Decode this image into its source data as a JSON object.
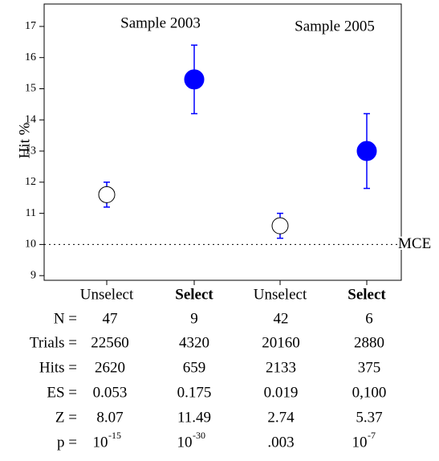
{
  "chart_data": {
    "type": "errorbar",
    "ylabel": "Hit %",
    "categories": [
      "Unselect",
      "Select",
      "Unselect",
      "Select"
    ],
    "category_colors": [
      "#000000",
      "#0000ff",
      "#000000",
      "#0000ff"
    ],
    "values": [
      11.6,
      15.3,
      10.6,
      13.0
    ],
    "errors": [
      0.4,
      1.1,
      0.4,
      1.2
    ],
    "point_colors": [
      "#ffffff",
      "#0000ff",
      "#ffffff",
      "#0000ff"
    ],
    "error_color": "#0000ff",
    "ylim": [
      8.85,
      17.72
    ],
    "yticks": [
      9,
      10,
      11,
      12,
      13,
      14,
      15,
      16,
      17
    ],
    "reference_line": {
      "value": 10,
      "label": "MCE"
    },
    "annotations": [
      "Sample 2003",
      "Sample 2005"
    ]
  },
  "table": {
    "rows": [
      {
        "label": "N =",
        "cells": [
          "47",
          "9",
          "42",
          "6"
        ]
      },
      {
        "label": "Trials =",
        "cells": [
          "22560",
          "4320",
          "20160",
          "2880"
        ]
      },
      {
        "label": "Hits =",
        "cells": [
          "2620",
          "659",
          "2133",
          "375"
        ]
      },
      {
        "label": "ES =",
        "cells": [
          "0.053",
          "0.175",
          "0.019",
          "0,100"
        ]
      },
      {
        "label": "Z =",
        "cells": [
          "8.07",
          "11.49",
          "2.74",
          "5.37"
        ]
      },
      {
        "label": "p =",
        "cells": [
          {
            "base": "10",
            "exponent": "-15"
          },
          {
            "base": "10",
            "exponent": "-30"
          },
          ".003",
          {
            "base": "10",
            "exponent": "-7"
          }
        ]
      }
    ]
  }
}
